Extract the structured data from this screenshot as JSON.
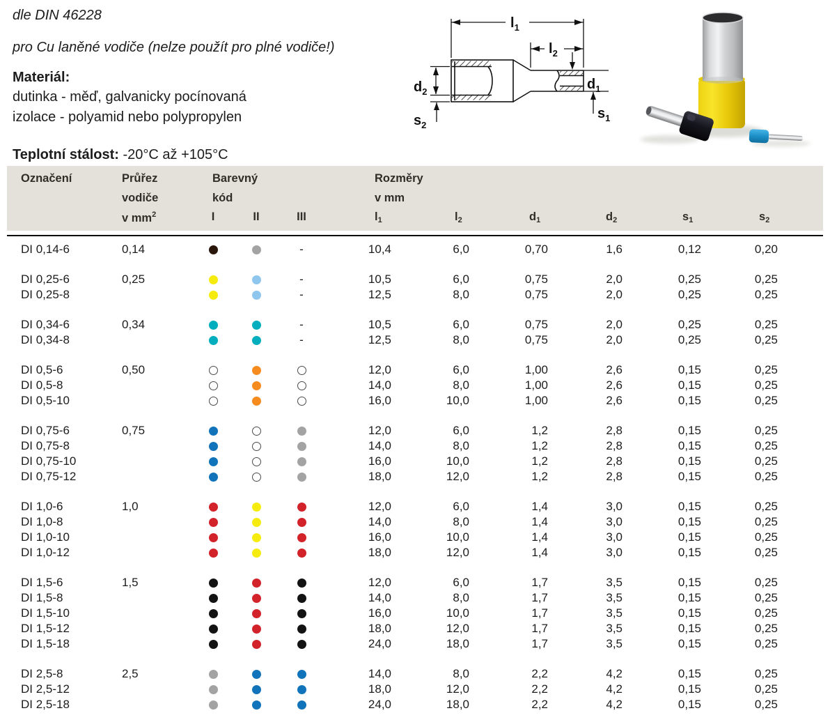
{
  "intro": {
    "din": "dle DIN 46228",
    "subtitle": "pro Cu laněné vodiče (nelze použít pro plné vodiče!)",
    "material_label": "Materiál:",
    "material_lines": [
      "dutinka - měď, galvanicky pocínovaná",
      "izolace - polyamid nebo polypropylen"
    ],
    "temperature_label": "Teplotní stálost:",
    "temperature_value": " -20°C až +105°C"
  },
  "diagram": {
    "labels": [
      {
        "b": "l",
        "s": "1"
      },
      {
        "b": "l",
        "s": "2"
      },
      {
        "b": "d",
        "s": "1"
      },
      {
        "b": "d",
        "s": "2"
      },
      {
        "b": "s",
        "s": "1"
      },
      {
        "b": "s",
        "s": "2"
      }
    ]
  },
  "colors": {
    "brownblack": "#2a160a",
    "black": "#131313",
    "grey": "#a3a3a3",
    "yellow": "#f6eb0e",
    "lightblue": "#8ec6ee",
    "turquoise": "#00aebd",
    "white": "#ffffff",
    "orange": "#f68b1e",
    "blue": "#1173b9",
    "red": "#d2232b"
  },
  "table": {
    "header": {
      "designation": "Označení",
      "cross1": "Průřez",
      "cross2": "vodiče",
      "cross3_base": "v mm",
      "cross3_sup": "2",
      "color1": "Barevný",
      "color2": "kód",
      "roman": [
        "I",
        "II",
        "III"
      ],
      "dims_title1": "Rozměry",
      "dims_title2": "v mm",
      "dims": [
        {
          "b": "l",
          "s": "1"
        },
        {
          "b": "l",
          "s": "2"
        },
        {
          "b": "d",
          "s": "1"
        },
        {
          "b": "d",
          "s": "2"
        },
        {
          "b": "s",
          "s": "1"
        },
        {
          "b": "s",
          "s": "2"
        }
      ]
    },
    "groups": [
      {
        "cross": "0,14",
        "rows": [
          {
            "name": "DI 0,14-6",
            "dots": [
              "brownblack",
              "grey",
              "-"
            ],
            "dims": [
              "10,4",
              "6,0",
              "0,70",
              "1,6",
              "0,12",
              "0,20"
            ]
          }
        ]
      },
      {
        "cross": "0,25",
        "rows": [
          {
            "name": "DI 0,25-6",
            "dots": [
              "yellow",
              "lightblue",
              "-"
            ],
            "dims": [
              "10,5",
              "6,0",
              "0,75",
              "2,0",
              "0,25",
              "0,25"
            ]
          },
          {
            "name": "DI 0,25-8",
            "dots": [
              "yellow",
              "lightblue",
              "-"
            ],
            "dims": [
              "12,5",
              "8,0",
              "0,75",
              "2,0",
              "0,25",
              "0,25"
            ]
          }
        ]
      },
      {
        "cross": "0,34",
        "rows": [
          {
            "name": "DI 0,34-6",
            "dots": [
              "turquoise",
              "turquoise",
              "-"
            ],
            "dims": [
              "10,5",
              "6,0",
              "0,75",
              "2,0",
              "0,25",
              "0,25"
            ]
          },
          {
            "name": "DI 0,34-8",
            "dots": [
              "turquoise",
              "turquoise",
              "-"
            ],
            "dims": [
              "12,5",
              "8,0",
              "0,75",
              "2,0",
              "0,25",
              "0,25"
            ]
          }
        ]
      },
      {
        "cross": "0,50",
        "rows": [
          {
            "name": "DI 0,5-6",
            "dots": [
              "white",
              "orange",
              "white"
            ],
            "dims": [
              "12,0",
              "6,0",
              "1,00",
              "2,6",
              "0,15",
              "0,25"
            ]
          },
          {
            "name": "DI 0,5-8",
            "dots": [
              "white",
              "orange",
              "white"
            ],
            "dims": [
              "14,0",
              "8,0",
              "1,00",
              "2,6",
              "0,15",
              "0,25"
            ]
          },
          {
            "name": "DI 0,5-10",
            "dots": [
              "white",
              "orange",
              "white"
            ],
            "dims": [
              "16,0",
              "10,0",
              "1,00",
              "2,6",
              "0,15",
              "0,25"
            ]
          }
        ]
      },
      {
        "cross": "0,75",
        "rows": [
          {
            "name": "DI 0,75-6",
            "dots": [
              "blue",
              "white",
              "grey"
            ],
            "dims": [
              "12,0",
              "6,0",
              "1,2",
              "2,8",
              "0,15",
              "0,25"
            ]
          },
          {
            "name": "DI 0,75-8",
            "dots": [
              "blue",
              "white",
              "grey"
            ],
            "dims": [
              "14,0",
              "8,0",
              "1,2",
              "2,8",
              "0,15",
              "0,25"
            ]
          },
          {
            "name": "DI 0,75-10",
            "dots": [
              "blue",
              "white",
              "grey"
            ],
            "dims": [
              "16,0",
              "10,0",
              "1,2",
              "2,8",
              "0,15",
              "0,25"
            ]
          },
          {
            "name": "DI 0,75-12",
            "dots": [
              "blue",
              "white",
              "grey"
            ],
            "dims": [
              "18,0",
              "12,0",
              "1,2",
              "2,8",
              "0,15",
              "0,25"
            ]
          }
        ]
      },
      {
        "cross": "1,0",
        "rows": [
          {
            "name": "DI 1,0-6",
            "dots": [
              "red",
              "yellow",
              "red"
            ],
            "dims": [
              "12,0",
              "6,0",
              "1,4",
              "3,0",
              "0,15",
              "0,25"
            ]
          },
          {
            "name": "DI 1,0-8",
            "dots": [
              "red",
              "yellow",
              "red"
            ],
            "dims": [
              "14,0",
              "8,0",
              "1,4",
              "3,0",
              "0,15",
              "0,25"
            ]
          },
          {
            "name": "DI 1,0-10",
            "dots": [
              "red",
              "yellow",
              "red"
            ],
            "dims": [
              "16,0",
              "10,0",
              "1,4",
              "3,0",
              "0,15",
              "0,25"
            ]
          },
          {
            "name": "DI 1,0-12",
            "dots": [
              "red",
              "yellow",
              "red"
            ],
            "dims": [
              "18,0",
              "12,0",
              "1,4",
              "3,0",
              "0,15",
              "0,25"
            ]
          }
        ]
      },
      {
        "cross": "1,5",
        "rows": [
          {
            "name": "DI 1,5-6",
            "dots": [
              "black",
              "red",
              "black"
            ],
            "dims": [
              "12,0",
              "6,0",
              "1,7",
              "3,5",
              "0,15",
              "0,25"
            ]
          },
          {
            "name": "DI 1,5-8",
            "dots": [
              "black",
              "red",
              "black"
            ],
            "dims": [
              "14,0",
              "8,0",
              "1,7",
              "3,5",
              "0,15",
              "0,25"
            ]
          },
          {
            "name": "DI 1,5-10",
            "dots": [
              "black",
              "red",
              "black"
            ],
            "dims": [
              "16,0",
              "10,0",
              "1,7",
              "3,5",
              "0,15",
              "0,25"
            ]
          },
          {
            "name": "DI 1,5-12",
            "dots": [
              "black",
              "red",
              "black"
            ],
            "dims": [
              "18,0",
              "12,0",
              "1,7",
              "3,5",
              "0,15",
              "0,25"
            ]
          },
          {
            "name": "DI 1,5-18",
            "dots": [
              "black",
              "red",
              "black"
            ],
            "dims": [
              "24,0",
              "18,0",
              "1,7",
              "3,5",
              "0,15",
              "0,25"
            ]
          }
        ]
      },
      {
        "cross": "2,5",
        "rows": [
          {
            "name": "DI 2,5-8",
            "dots": [
              "grey",
              "blue",
              "blue"
            ],
            "dims": [
              "14,0",
              "8,0",
              "2,2",
              "4,2",
              "0,15",
              "0,25"
            ]
          },
          {
            "name": "DI 2,5-12",
            "dots": [
              "grey",
              "blue",
              "blue"
            ],
            "dims": [
              "18,0",
              "12,0",
              "2,2",
              "4,2",
              "0,15",
              "0,25"
            ]
          },
          {
            "name": "DI 2,5-18",
            "dots": [
              "grey",
              "blue",
              "blue"
            ],
            "dims": [
              "24,0",
              "18,0",
              "2,2",
              "4,2",
              "0,15",
              "0,25"
            ]
          }
        ]
      }
    ]
  }
}
